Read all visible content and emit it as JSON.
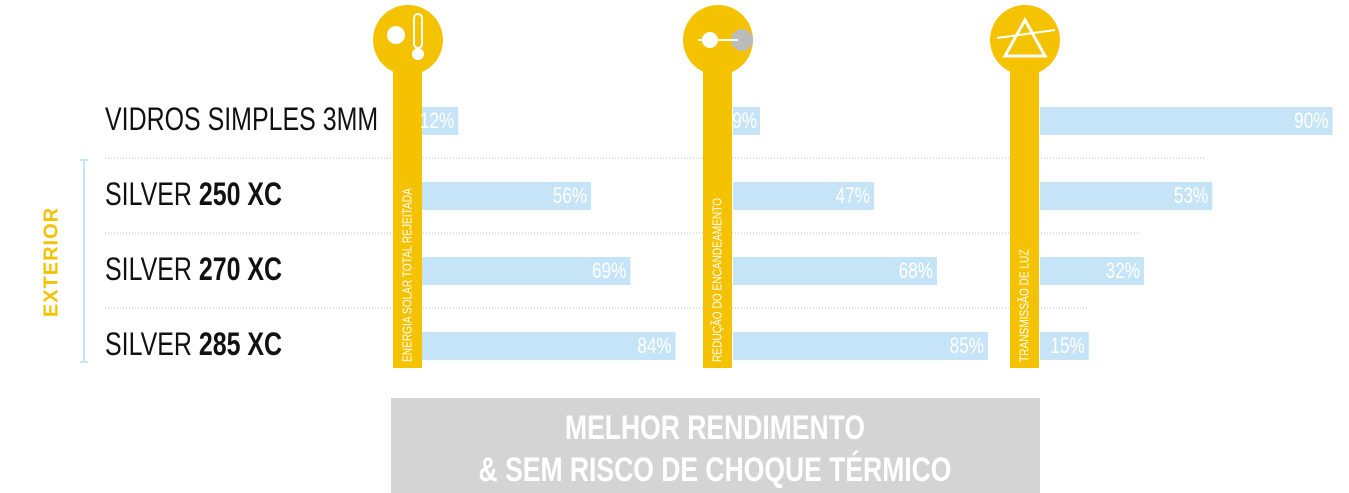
{
  "side_label": "EXTERIOR",
  "categories": [
    {
      "text": "VIDROS SIMPLES 3MM"
    },
    {
      "text": "SILVER",
      "bold": "250 XC"
    },
    {
      "text": "SILVER",
      "bold": "270 XC"
    },
    {
      "text": "SILVER",
      "bold": "285 XC"
    }
  ],
  "chart_data": [
    {
      "type": "bar",
      "title": "ENERGIA SOLAR TOTAL REJEITADA",
      "color": "#c6e4f7",
      "xlim": [
        0,
        100
      ],
      "values": [
        12,
        56,
        69,
        84
      ],
      "value_labels": [
        "12%",
        "56%",
        "69%",
        "84%"
      ]
    },
    {
      "type": "bar",
      "title": "REDUÇÃO DO ENCANDEAMENTO",
      "color": "#c6e4f7",
      "xlim": [
        0,
        100
      ],
      "values": [
        9,
        47,
        68,
        85
      ],
      "value_labels": [
        "9%",
        "47%",
        "68%",
        "85%"
      ]
    },
    {
      "type": "bar",
      "title": "TRANSMISSÃO DE LUZ",
      "color": "#c6e4f7",
      "xlim": [
        0,
        100
      ],
      "values": [
        90,
        53,
        32,
        15
      ],
      "value_labels": [
        "90%",
        "53%",
        "32%",
        "15%"
      ]
    }
  ],
  "footer": [
    "MELHOR RENDIMENTO",
    "& SEM RISCO DE CHOQUE TÉRMICO"
  ]
}
